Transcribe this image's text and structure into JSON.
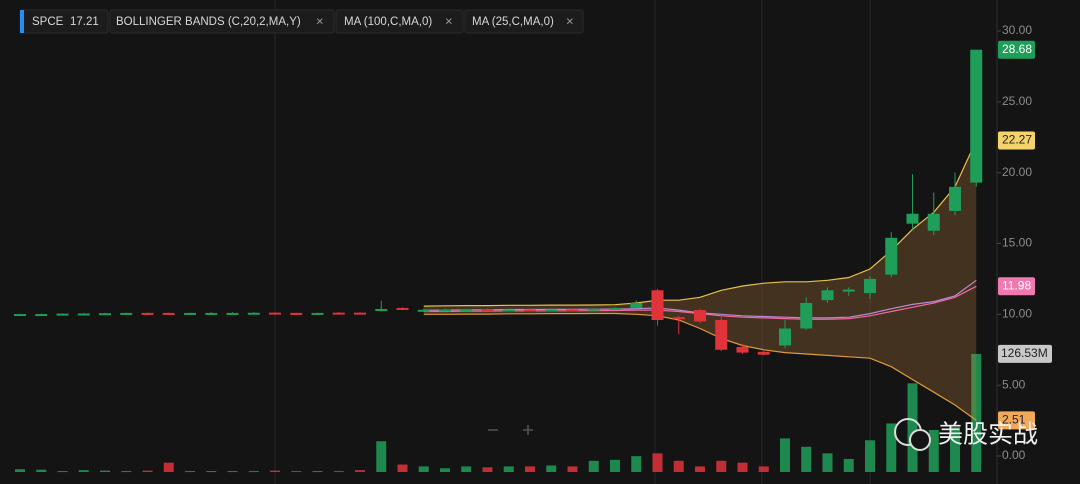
{
  "chart_data": {
    "type": "candlestick",
    "ticker": "SPCE",
    "price": "17.21",
    "watermark": "美股实战",
    "ylim": [
      -1.13,
      32.19
    ],
    "yticks": [
      {
        "value": 0,
        "label": "0.00"
      },
      {
        "value": 5,
        "label": "5.00"
      },
      {
        "value": 10,
        "label": "10.00"
      },
      {
        "value": 15,
        "label": "15.00"
      },
      {
        "value": 20,
        "label": "20.00"
      },
      {
        "value": 25,
        "label": "25.00"
      },
      {
        "value": 30,
        "label": "30.00"
      }
    ],
    "up_color": "#1e9e58",
    "down_color": "#e0333a",
    "candles": {
      "open": [
        10.0,
        10.0,
        10.02,
        10.05,
        10.05,
        10.06,
        10.1,
        10.1,
        10.06,
        10.1,
        10.1,
        10.1,
        10.12,
        10.1,
        10.06,
        10.12,
        10.12,
        10.25,
        10.45,
        10.3,
        10.3,
        10.32,
        10.36,
        10.3,
        10.34,
        10.3,
        10.35,
        10.3,
        10.4,
        10.45,
        11.7,
        9.8,
        10.3,
        9.6,
        7.7,
        7.35,
        7.8,
        9.0,
        11.0,
        11.6,
        11.5,
        12.8,
        16.4,
        15.9,
        17.3,
        19.3
      ],
      "high": [
        10.05,
        10.05,
        10.08,
        10.1,
        10.1,
        10.12,
        10.12,
        10.12,
        10.12,
        10.15,
        10.15,
        10.15,
        10.15,
        10.12,
        10.12,
        10.15,
        10.15,
        10.95,
        10.5,
        10.4,
        10.4,
        10.4,
        10.42,
        10.4,
        10.42,
        10.4,
        10.42,
        10.45,
        10.5,
        11.0,
        11.8,
        9.9,
        10.4,
        9.8,
        7.9,
        7.5,
        9.6,
        11.2,
        11.9,
        11.9,
        12.7,
        15.8,
        19.9,
        18.6,
        20.0,
        28.68
      ],
      "low": [
        9.95,
        9.95,
        9.98,
        10.0,
        10.0,
        10.02,
        10.0,
        10.02,
        10.02,
        10.05,
        10.05,
        10.05,
        10.05,
        10.0,
        10.02,
        10.05,
        10.05,
        10.2,
        10.3,
        10.2,
        10.2,
        10.25,
        10.28,
        10.25,
        10.28,
        10.25,
        10.28,
        10.25,
        10.3,
        10.4,
        9.2,
        8.6,
        9.4,
        7.4,
        7.2,
        7.1,
        7.6,
        8.9,
        10.8,
        11.3,
        11.1,
        12.6,
        16.0,
        15.6,
        17.0,
        19.0
      ],
      "close": [
        10.02,
        10.02,
        10.05,
        10.06,
        10.08,
        10.1,
        10.06,
        10.06,
        10.1,
        10.1,
        10.1,
        10.11,
        10.08,
        10.06,
        10.1,
        10.08,
        10.08,
        10.38,
        10.32,
        10.32,
        10.34,
        10.36,
        10.3,
        10.34,
        10.3,
        10.35,
        10.3,
        10.4,
        10.45,
        10.8,
        9.6,
        9.7,
        9.5,
        7.5,
        7.3,
        7.15,
        9.0,
        10.8,
        11.7,
        11.75,
        12.5,
        15.4,
        17.1,
        17.1,
        19.0,
        28.68
      ]
    },
    "volume": {
      "values": [
        3,
        2.5,
        1,
        2,
        1.5,
        1,
        1.5,
        10,
        1,
        1,
        1,
        1,
        1.5,
        1,
        1,
        1,
        2,
        33,
        8,
        6,
        4,
        6,
        5,
        6,
        6,
        7,
        6,
        12,
        13,
        17,
        20,
        12,
        6,
        12,
        10,
        6,
        36,
        27,
        20,
        14,
        34,
        52,
        95,
        45,
        48,
        126.53
      ],
      "ylim": [
        0,
        150
      ],
      "last_label": "126.53M"
    },
    "indicators": [
      {
        "label": "BOLLINGER BANDS (C,20,2,MA,Y)",
        "upper_color": "#e8c04a",
        "lower_color": "#e09a3c",
        "middle_color": "#b58ad6",
        "fill": "rgba(190,130,60,0.28)",
        "upper": [
          null,
          null,
          null,
          null,
          null,
          null,
          null,
          null,
          null,
          null,
          null,
          null,
          null,
          null,
          null,
          null,
          null,
          null,
          null,
          10.58,
          10.6,
          10.62,
          10.62,
          10.64,
          10.64,
          10.65,
          10.65,
          10.66,
          10.68,
          10.8,
          11.0,
          11.0,
          11.2,
          11.7,
          12.0,
          12.2,
          12.3,
          12.3,
          12.4,
          12.6,
          13.2,
          14.5,
          16.0,
          17.2,
          19.0,
          22.27
        ],
        "middle": [
          null,
          null,
          null,
          null,
          null,
          null,
          null,
          null,
          null,
          null,
          null,
          null,
          null,
          null,
          null,
          null,
          null,
          null,
          null,
          10.29,
          10.3,
          10.32,
          10.32,
          10.34,
          10.34,
          10.35,
          10.35,
          10.36,
          10.37,
          10.4,
          10.45,
          10.3,
          10.1,
          10.0,
          9.9,
          9.85,
          9.8,
          9.75,
          9.75,
          9.8,
          10.05,
          10.4,
          10.7,
          10.9,
          11.3,
          12.4
        ],
        "lower": [
          null,
          null,
          null,
          null,
          null,
          null,
          null,
          null,
          null,
          null,
          null,
          null,
          null,
          null,
          null,
          null,
          null,
          null,
          null,
          10.0,
          10.0,
          10.02,
          10.02,
          10.04,
          10.04,
          10.05,
          10.05,
          10.06,
          10.06,
          10.0,
          9.9,
          9.6,
          9.0,
          8.3,
          7.8,
          7.5,
          7.3,
          7.2,
          7.1,
          7.0,
          6.9,
          6.3,
          5.4,
          4.5,
          3.6,
          2.51
        ]
      },
      {
        "label": "MA (100,C,MA,0)",
        "color": "#f06aa0",
        "values": [
          null,
          null,
          null,
          null,
          null,
          null,
          null,
          null,
          null,
          null,
          null,
          null,
          null,
          null,
          null,
          null,
          null,
          null,
          null,
          10.2,
          10.2,
          10.22,
          10.22,
          10.24,
          10.24,
          10.25,
          10.25,
          10.26,
          10.27,
          10.3,
          10.3,
          10.2,
          10.05,
          9.9,
          9.8,
          9.75,
          9.7,
          9.65,
          9.65,
          9.7,
          9.9,
          10.2,
          10.5,
          10.8,
          11.2,
          11.98
        ]
      },
      {
        "label": "MA (25,C,MA,0)"
      }
    ]
  }
}
